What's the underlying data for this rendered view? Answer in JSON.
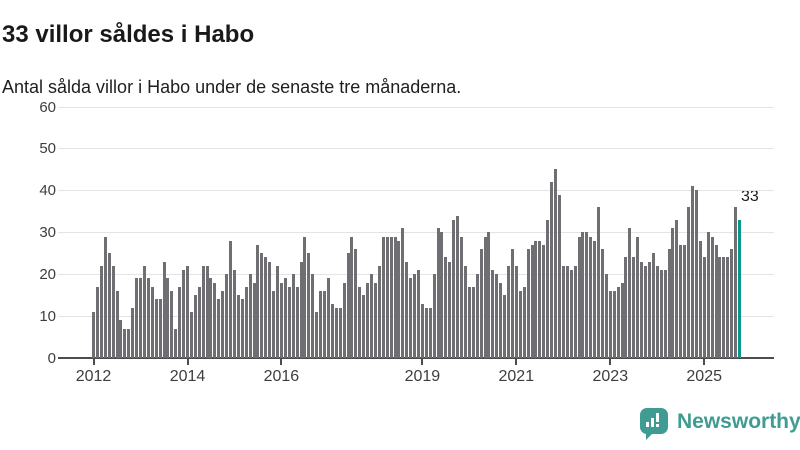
{
  "header": {
    "title": "33 villor såldes i Habo",
    "subtitle": "Antal sålda villor i Habo under de senaste tre månaderna."
  },
  "annotation": {
    "value": "33"
  },
  "logo": {
    "text": "Newsworthy",
    "icon": "bar-chart-speech-bubble-icon"
  },
  "colors": {
    "bar": "#6e6e73",
    "highlight": "#0b968c",
    "brand": "#3f9c92",
    "gridline": "#e4e4e4",
    "axis": "#4d4d4d",
    "label": "#3d3d3d",
    "text": "#191919"
  },
  "chart_data": {
    "type": "bar",
    "title": "33 villor såldes i Habo",
    "subtitle": "Antal sålda villor i Habo under de senaste tre månaderna.",
    "ylabel": "",
    "xlabel": "",
    "ylim": [
      0,
      60
    ],
    "y_ticks": [
      0,
      10,
      20,
      30,
      40,
      50,
      60
    ],
    "grid": true,
    "x_start_month": "2012-01",
    "x_end_month": "2025-10",
    "x_tick_labels": [
      "2012",
      "2014",
      "2016",
      "2019",
      "2021",
      "2023",
      "2025"
    ],
    "x_tick_month_indices": [
      0,
      24,
      48,
      84,
      108,
      132,
      156
    ],
    "highlight_last_value": 33,
    "values": [
      11,
      17,
      22,
      29,
      25,
      22,
      16,
      9,
      7,
      7,
      12,
      19,
      19,
      22,
      19,
      17,
      14,
      14,
      23,
      19,
      16,
      7,
      17,
      21,
      22,
      11,
      15,
      17,
      22,
      22,
      19,
      18,
      14,
      16,
      20,
      28,
      21,
      15,
      14,
      17,
      20,
      18,
      27,
      25,
      24,
      23,
      16,
      22,
      18,
      19,
      17,
      20,
      17,
      23,
      29,
      25,
      20,
      11,
      16,
      16,
      19,
      13,
      12,
      12,
      18,
      25,
      29,
      26,
      17,
      15,
      18,
      20,
      18,
      22,
      29,
      29,
      29,
      29,
      28,
      31,
      23,
      19,
      20,
      21,
      13,
      12,
      12,
      20,
      31,
      30,
      24,
      23,
      33,
      34,
      29,
      22,
      17,
      17,
      20,
      26,
      29,
      30,
      21,
      20,
      18,
      15,
      22,
      26,
      22,
      16,
      17,
      26,
      27,
      28,
      28,
      27,
      33,
      42,
      45,
      39,
      22,
      22,
      21,
      22,
      29,
      30,
      30,
      29,
      28,
      36,
      26,
      20,
      16,
      16,
      17,
      18,
      24,
      31,
      24,
      29,
      23,
      22,
      23,
      25,
      22,
      21,
      21,
      26,
      31,
      33,
      27,
      27,
      36,
      41,
      40,
      28,
      24,
      30,
      29,
      27,
      24,
      24,
      24,
      26,
      36,
      33
    ]
  }
}
